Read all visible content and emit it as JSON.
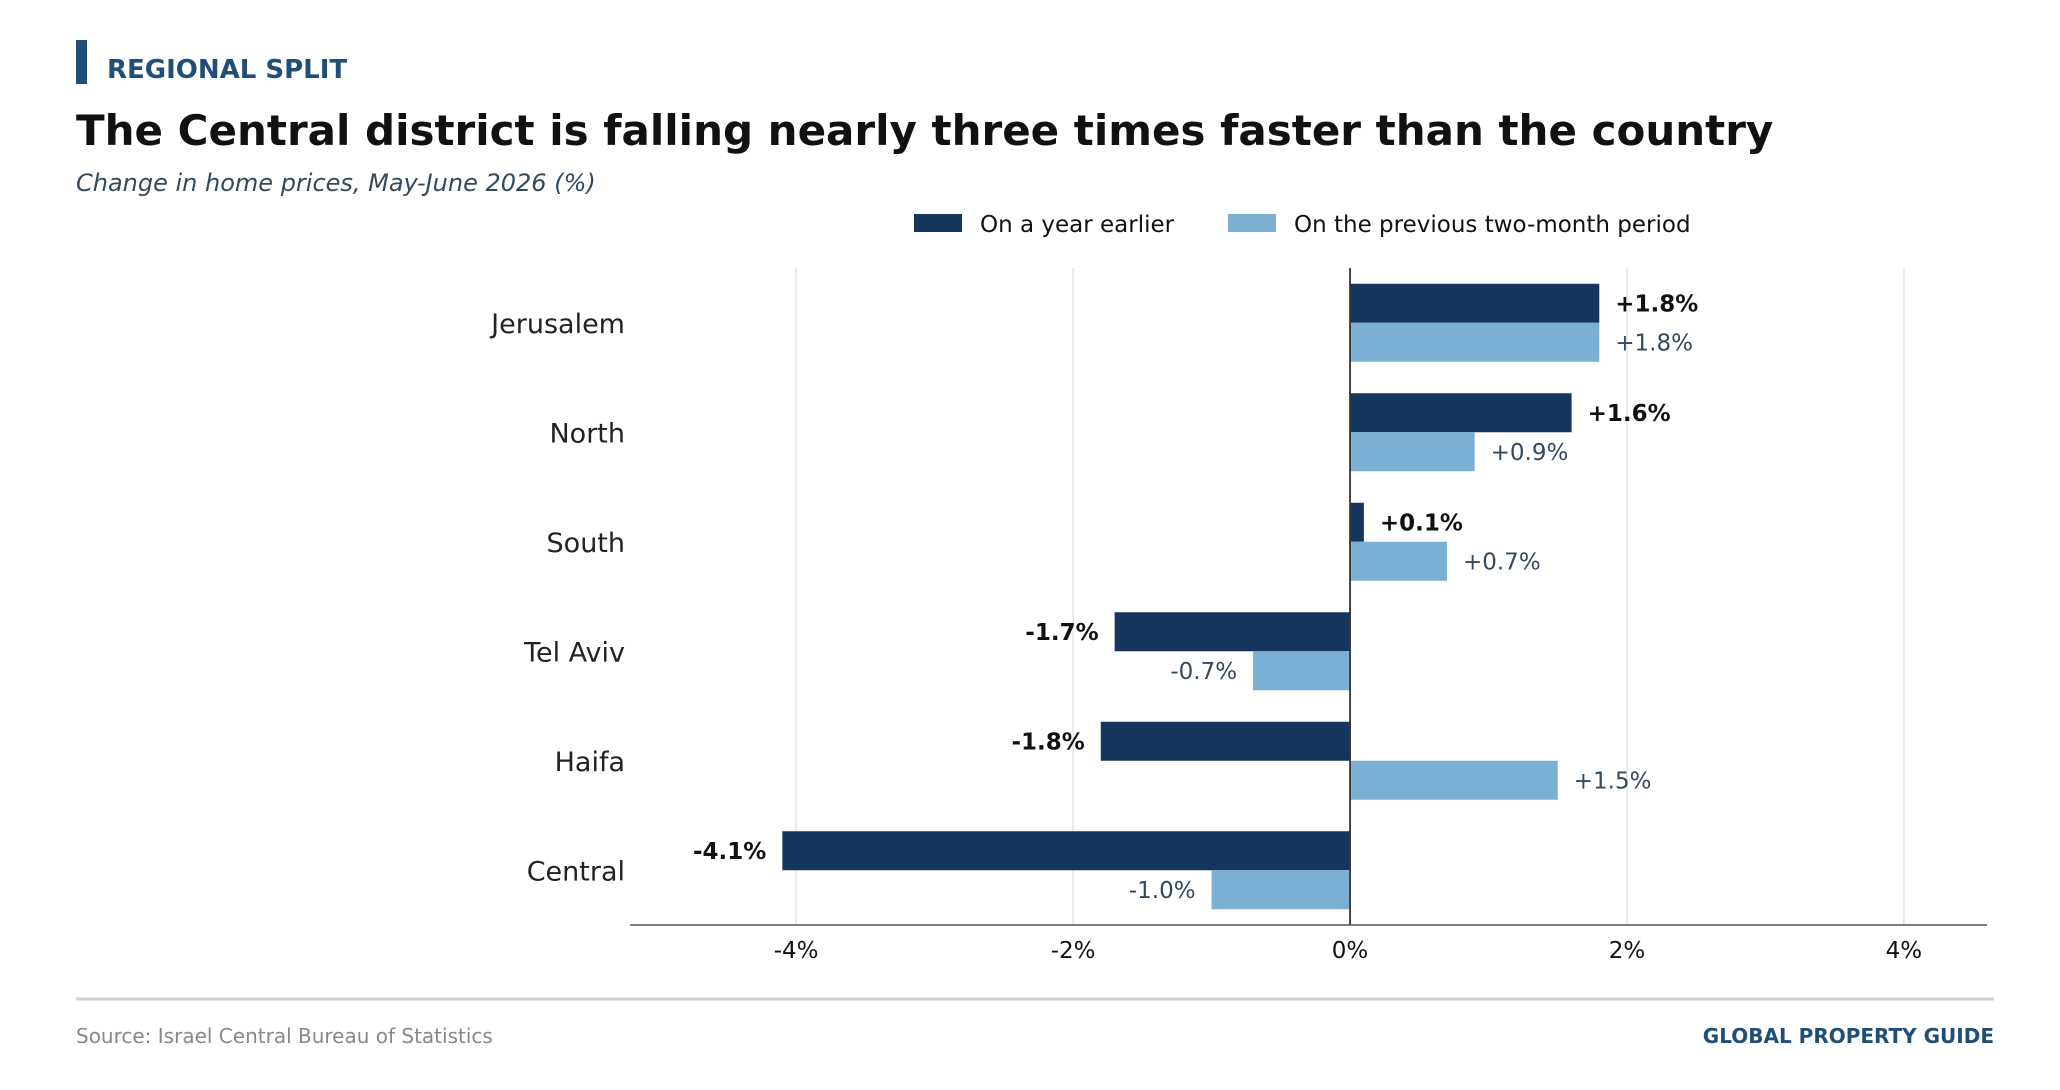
{
  "header": {
    "kicker": "REGIONAL SPLIT",
    "title": "The Central district is falling nearly three times faster than the country",
    "subtitle": "Change in home prices, May-June 2026 (%)"
  },
  "footer": {
    "source": "Source: Israel Central Bureau of Statistics",
    "brand": "GLOBAL PROPERTY GUIDE"
  },
  "colors": {
    "accent": "#1f4e79",
    "series_dark": "#17365d",
    "series_light": "#7bafd4",
    "text": "#111111",
    "muted": "#888888"
  },
  "chart_data": {
    "type": "bar",
    "orientation": "horizontal",
    "categories": [
      "Jerusalem",
      "North",
      "South",
      "Tel Aviv",
      "Haifa",
      "Central"
    ],
    "series": [
      {
        "name": "On a year earlier",
        "values": [
          1.8,
          1.6,
          0.1,
          -1.7,
          -1.8,
          -4.1
        ],
        "labels": [
          "+1.8%",
          "+1.6%",
          "+0.1%",
          "-1.7%",
          "-1.8%",
          "-4.1%"
        ]
      },
      {
        "name": "On the previous two-month period",
        "values": [
          1.8,
          0.9,
          0.7,
          -0.7,
          1.5,
          -1.0
        ],
        "labels": [
          "+1.8%",
          "+0.9%",
          "+0.7%",
          "-0.7%",
          "+1.5%",
          "-1.0%"
        ]
      }
    ],
    "xlim": [
      -5.2,
      4.6
    ],
    "xticks": [
      -4,
      -2,
      0,
      2,
      4
    ],
    "xtick_labels": [
      "-4%",
      "-2%",
      "0%",
      "2%",
      "4%"
    ],
    "grid": "vertical",
    "legend": "top"
  }
}
